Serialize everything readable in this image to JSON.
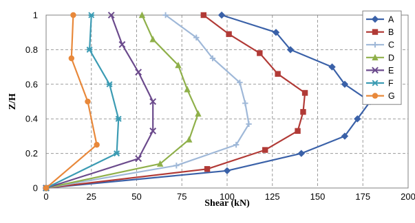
{
  "chart_data": {
    "type": "line",
    "title": "",
    "xlabel": "Shear (kN)",
    "ylabel": "Z/H",
    "xlim": [
      0,
      200
    ],
    "ylim": [
      0,
      1
    ],
    "xticks": [
      0,
      25,
      50,
      75,
      100,
      125,
      150,
      175,
      200
    ],
    "yticks": [
      0,
      0.2,
      0.4,
      0.6,
      0.8,
      1
    ],
    "grid": true,
    "legend_position": "top-right",
    "series": [
      {
        "name": "A",
        "color": "#3a61a8",
        "marker": "diamond",
        "points": [
          [
            0,
            0
          ],
          [
            100,
            0.1
          ],
          [
            141,
            0.2
          ],
          [
            165,
            0.3
          ],
          [
            172,
            0.4
          ],
          [
            179,
            0.5
          ],
          [
            165,
            0.6
          ],
          [
            158,
            0.7
          ],
          [
            135,
            0.8
          ],
          [
            127,
            0.9
          ],
          [
            97,
            1
          ]
        ]
      },
      {
        "name": "B",
        "color": "#b13a36",
        "marker": "square",
        "points": [
          [
            0,
            0
          ],
          [
            89,
            0.11
          ],
          [
            121,
            0.22
          ],
          [
            139,
            0.33
          ],
          [
            142,
            0.44
          ],
          [
            143,
            0.55
          ],
          [
            128,
            0.66
          ],
          [
            118,
            0.78
          ],
          [
            101,
            0.89
          ],
          [
            87,
            1
          ]
        ]
      },
      {
        "name": "C",
        "color": "#9fb8d8",
        "marker": "plus",
        "points": [
          [
            0,
            0
          ],
          [
            72,
            0.13
          ],
          [
            105,
            0.25
          ],
          [
            112,
            0.37
          ],
          [
            110,
            0.49
          ],
          [
            107,
            0.61
          ],
          [
            92,
            0.75
          ],
          [
            83,
            0.87
          ],
          [
            66,
            1
          ]
        ]
      },
      {
        "name": "D",
        "color": "#8fb04a",
        "marker": "triangle",
        "points": [
          [
            0,
            0
          ],
          [
            63,
            0.14
          ],
          [
            79,
            0.28
          ],
          [
            84,
            0.43
          ],
          [
            78,
            0.57
          ],
          [
            73,
            0.71
          ],
          [
            59,
            0.86
          ],
          [
            53,
            1
          ]
        ]
      },
      {
        "name": "E",
        "color": "#6b4a8c",
        "marker": "x",
        "points": [
          [
            0,
            0
          ],
          [
            51,
            0.17
          ],
          [
            59,
            0.33
          ],
          [
            59,
            0.5
          ],
          [
            51,
            0.67
          ],
          [
            42,
            0.83
          ],
          [
            36,
            1
          ]
        ]
      },
      {
        "name": "F",
        "color": "#3b9bb3",
        "marker": "star",
        "points": [
          [
            0,
            0
          ],
          [
            39,
            0.2
          ],
          [
            40,
            0.4
          ],
          [
            35,
            0.6
          ],
          [
            24,
            0.8
          ],
          [
            25,
            1
          ]
        ]
      },
      {
        "name": "G",
        "color": "#e8883a",
        "marker": "circle",
        "points": [
          [
            0,
            0
          ],
          [
            28,
            0.25
          ],
          [
            23,
            0.5
          ],
          [
            14,
            0.75
          ],
          [
            15,
            1
          ]
        ]
      }
    ]
  }
}
